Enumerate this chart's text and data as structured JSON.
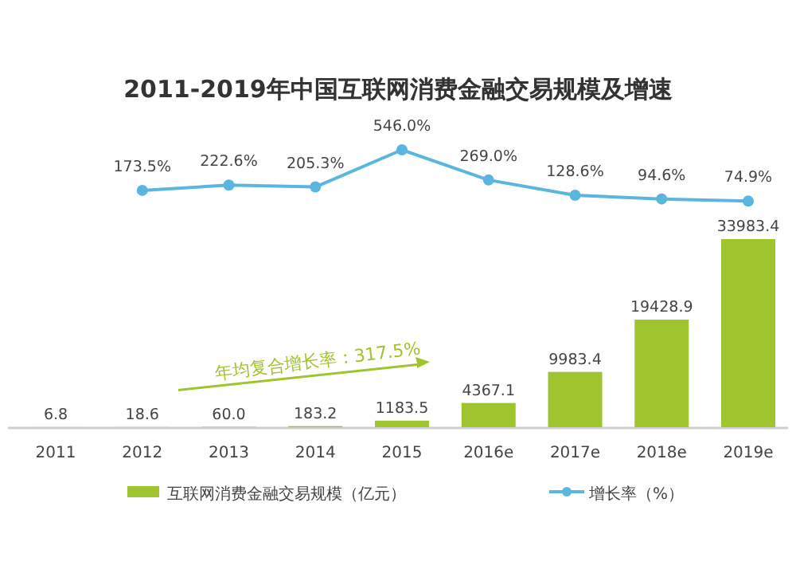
{
  "chart_data": [
    {
      "type": "line",
      "title": "2011-2019年中国互联网消费金融交易规模及增速",
      "categories": [
        null,
        null,
        null,
        null,
        null,
        null,
        null,
        null,
        null
      ],
      "tick_labels": false,
      "legend": "bottom",
      "marker": "circle",
      "series": [
        {
          "name": "增长率（%）",
          "color": "#5ab6de",
          "values": [
            null,
            173.5,
            222.6,
            205.3,
            546.0,
            269.0,
            128.6,
            94.6,
            74.9
          ],
          "value_labels": [
            null,
            "173.5%",
            "222.6%",
            "205.3%",
            "546.0%",
            "269.0%",
            "128.6%",
            "94.6%",
            "74.9%"
          ]
        }
      ]
    },
    {
      "type": "bar",
      "categories": [
        "2011",
        "2012",
        "2013",
        "2014",
        "2015",
        "2016e",
        "2017e",
        "2018e",
        "2019e"
      ],
      "tick_labels": "x",
      "legend": "bottom",
      "series": [
        {
          "name": "互联网消费金融交易规模（亿元）",
          "color": "#a0c42e",
          "values": [
            6.8,
            18.6,
            60.0,
            183.2,
            1183.5,
            4367.1,
            9983.4,
            19428.9,
            33983.4
          ],
          "value_labels": [
            "6.8",
            "18.6",
            "60.0",
            "183.2",
            "1183.5",
            "4367.1",
            "9983.4",
            "19428.9",
            "33983.4"
          ]
        }
      ],
      "annotations": [
        "年均复合增长率：317.5%"
      ]
    }
  ]
}
